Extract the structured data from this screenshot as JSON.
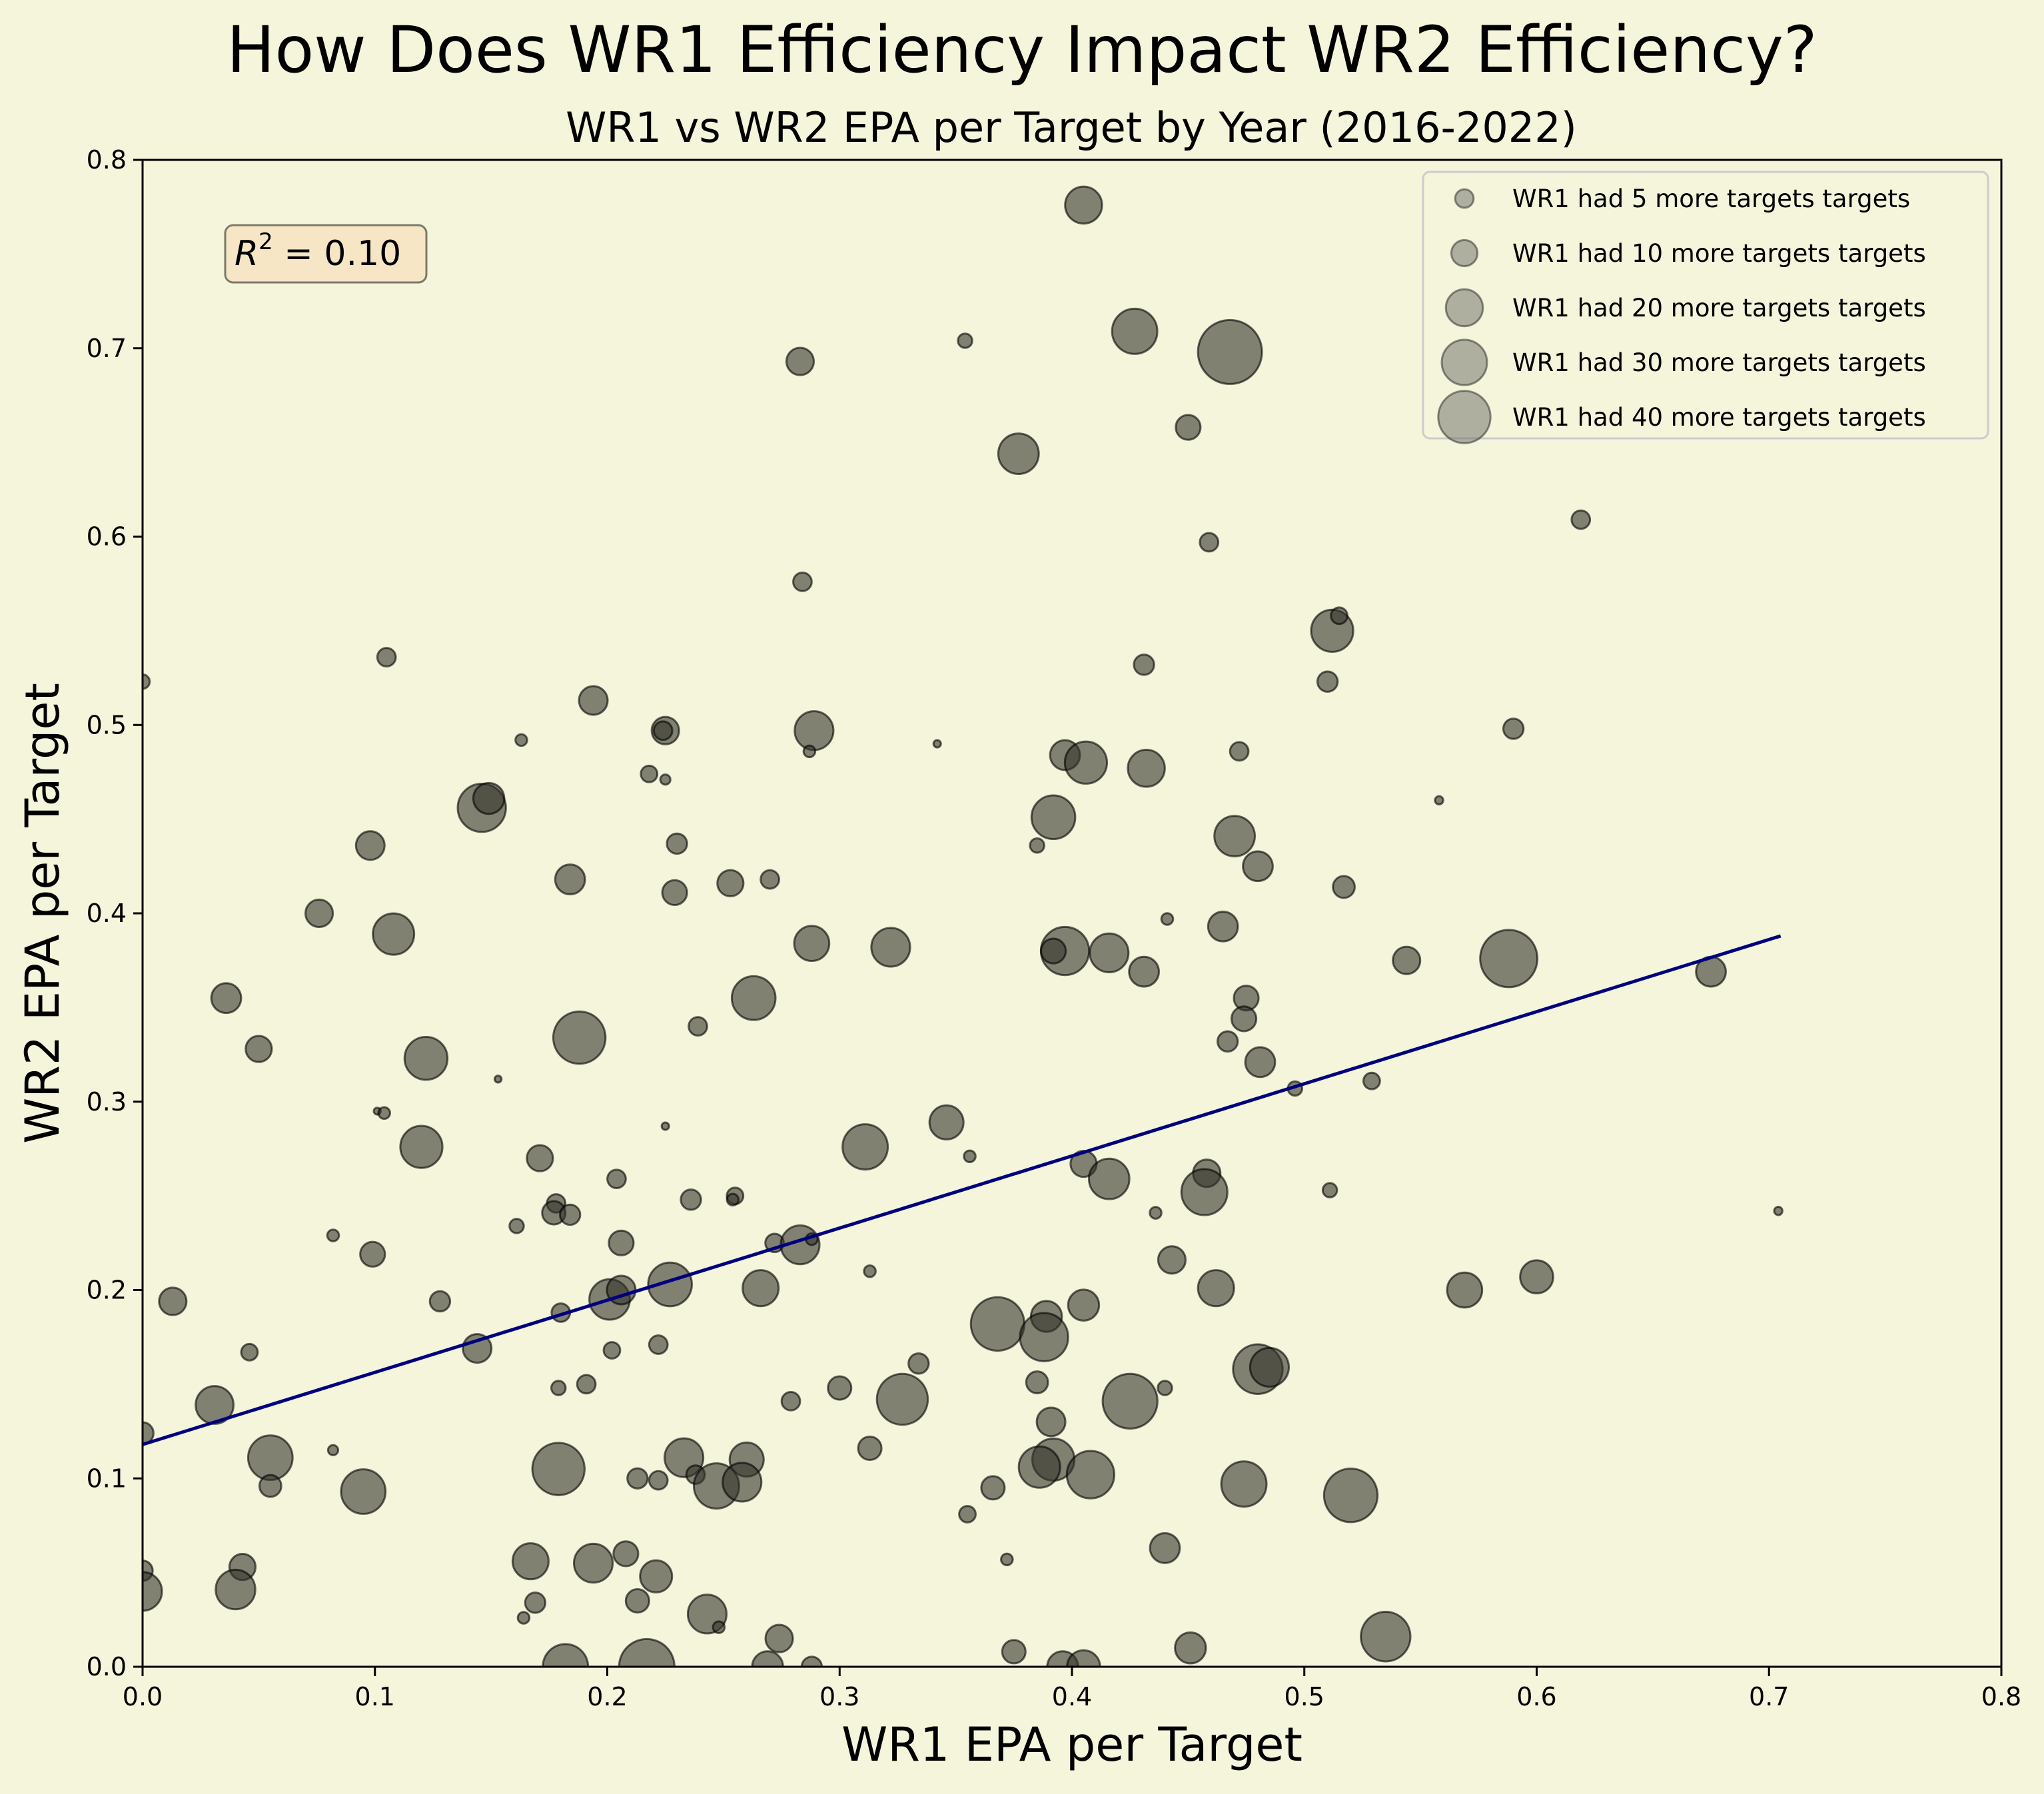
{
  "chart_data": {
    "type": "scatter",
    "title": "How Does WR1 Efficiency Impact WR2 Efficiency?",
    "subtitle": "WR1 vs WR2 EPA per Target by Year (2016-2022)",
    "xlabel": "WR1 EPA per Target",
    "ylabel": "WR2 EPA per Target",
    "xlim": [
      0.0,
      0.8
    ],
    "ylim": [
      0.0,
      0.8
    ],
    "xticks": [
      "0.0",
      "0.1",
      "0.2",
      "0.3",
      "0.4",
      "0.5",
      "0.6",
      "0.7",
      "0.8"
    ],
    "yticks": [
      "0.0",
      "0.1",
      "0.2",
      "0.3",
      "0.4",
      "0.5",
      "0.6",
      "0.7",
      "0.8"
    ],
    "grid": false,
    "annotation": "R² = 0.10",
    "annotation_parts": {
      "base": "R",
      "exp": "2",
      "rest": " = 0.10"
    },
    "trendline": {
      "x": [
        0.0,
        0.705
      ],
      "y": [
        0.118,
        0.388
      ],
      "color": "#00007f"
    },
    "legend": {
      "placement": "top-right",
      "entries": [
        {
          "label": "WR1 had 5 more targets targets",
          "size": 5
        },
        {
          "label": "WR1 had 10 more targets targets",
          "size": 10
        },
        {
          "label": "WR1 had 20 more targets targets",
          "size": 20
        },
        {
          "label": "WR1 had 30 more targets targets",
          "size": 30
        },
        {
          "label": "WR1 had 40 more targets targets",
          "size": 40
        }
      ]
    },
    "colors": {
      "background": "#f5f5dc",
      "marker": "#33332b",
      "trendline": "#00007f",
      "annotation_box": "#f7e6c6"
    },
    "points": [
      {
        "x": 0.405,
        "y": 0.776,
        "s": 20
      },
      {
        "x": 0.427,
        "y": 0.709,
        "s": 30
      },
      {
        "x": 0.468,
        "y": 0.698,
        "s": 60
      },
      {
        "x": 0.283,
        "y": 0.693,
        "s": 11
      },
      {
        "x": 0.354,
        "y": 0.704,
        "s": 3
      },
      {
        "x": 0.377,
        "y": 0.644,
        "s": 24
      },
      {
        "x": 0.45,
        "y": 0.658,
        "s": 9
      },
      {
        "x": 0.619,
        "y": 0.609,
        "s": 5
      },
      {
        "x": 0.459,
        "y": 0.597,
        "s": 5
      },
      {
        "x": 0.284,
        "y": 0.576,
        "s": 5
      },
      {
        "x": 0.512,
        "y": 0.55,
        "s": 26
      },
      {
        "x": 0.515,
        "y": 0.558,
        "s": 4
      },
      {
        "x": 0.51,
        "y": 0.523,
        "s": 6
      },
      {
        "x": 0.431,
        "y": 0.532,
        "s": 6
      },
      {
        "x": 0.0,
        "y": 0.523,
        "s": 3
      },
      {
        "x": 0.105,
        "y": 0.536,
        "s": 5
      },
      {
        "x": 0.194,
        "y": 0.513,
        "s": 12
      },
      {
        "x": 0.225,
        "y": 0.497,
        "s": 11
      },
      {
        "x": 0.224,
        "y": 0.497,
        "s": 5
      },
      {
        "x": 0.289,
        "y": 0.497,
        "s": 22
      },
      {
        "x": 0.287,
        "y": 0.486,
        "s": 2
      },
      {
        "x": 0.163,
        "y": 0.492,
        "s": 2
      },
      {
        "x": 0.342,
        "y": 0.49,
        "s": 0.8
      },
      {
        "x": 0.59,
        "y": 0.498,
        "s": 6
      },
      {
        "x": 0.472,
        "y": 0.486,
        "s": 5
      },
      {
        "x": 0.397,
        "y": 0.484,
        "s": 13
      },
      {
        "x": 0.406,
        "y": 0.48,
        "s": 26
      },
      {
        "x": 0.432,
        "y": 0.477,
        "s": 20
      },
      {
        "x": 0.218,
        "y": 0.474,
        "s": 4
      },
      {
        "x": 0.225,
        "y": 0.471,
        "s": 1.5
      },
      {
        "x": 0.146,
        "y": 0.456,
        "s": 34
      },
      {
        "x": 0.149,
        "y": 0.461,
        "s": 14
      },
      {
        "x": 0.392,
        "y": 0.451,
        "s": 28
      },
      {
        "x": 0.558,
        "y": 0.46,
        "s": 1
      },
      {
        "x": 0.098,
        "y": 0.436,
        "s": 12
      },
      {
        "x": 0.23,
        "y": 0.437,
        "s": 6
      },
      {
        "x": 0.385,
        "y": 0.436,
        "s": 3
      },
      {
        "x": 0.47,
        "y": 0.441,
        "s": 24
      },
      {
        "x": 0.48,
        "y": 0.425,
        "s": 13
      },
      {
        "x": 0.184,
        "y": 0.418,
        "s": 13
      },
      {
        "x": 0.253,
        "y": 0.416,
        "s": 10
      },
      {
        "x": 0.27,
        "y": 0.418,
        "s": 5
      },
      {
        "x": 0.229,
        "y": 0.411,
        "s": 9
      },
      {
        "x": 0.517,
        "y": 0.414,
        "s": 7
      },
      {
        "x": 0.076,
        "y": 0.4,
        "s": 11
      },
      {
        "x": 0.108,
        "y": 0.389,
        "s": 25
      },
      {
        "x": 0.441,
        "y": 0.397,
        "s": 2
      },
      {
        "x": 0.465,
        "y": 0.393,
        "s": 13
      },
      {
        "x": 0.288,
        "y": 0.384,
        "s": 18
      },
      {
        "x": 0.322,
        "y": 0.382,
        "s": 22
      },
      {
        "x": 0.397,
        "y": 0.38,
        "s": 34
      },
      {
        "x": 0.392,
        "y": 0.38,
        "s": 9
      },
      {
        "x": 0.416,
        "y": 0.379,
        "s": 22
      },
      {
        "x": 0.431,
        "y": 0.369,
        "s": 13
      },
      {
        "x": 0.588,
        "y": 0.376,
        "s": 48
      },
      {
        "x": 0.544,
        "y": 0.375,
        "s": 11
      },
      {
        "x": 0.675,
        "y": 0.369,
        "s": 13
      },
      {
        "x": 0.036,
        "y": 0.355,
        "s": 13
      },
      {
        "x": 0.263,
        "y": 0.355,
        "s": 28
      },
      {
        "x": 0.475,
        "y": 0.355,
        "s": 9
      },
      {
        "x": 0.474,
        "y": 0.344,
        "s": 9
      },
      {
        "x": 0.239,
        "y": 0.34,
        "s": 5
      },
      {
        "x": 0.188,
        "y": 0.334,
        "s": 40
      },
      {
        "x": 0.05,
        "y": 0.328,
        "s": 10
      },
      {
        "x": 0.122,
        "y": 0.323,
        "s": 27
      },
      {
        "x": 0.467,
        "y": 0.332,
        "s": 6
      },
      {
        "x": 0.481,
        "y": 0.321,
        "s": 13
      },
      {
        "x": 0.153,
        "y": 0.312,
        "s": 0.7
      },
      {
        "x": 0.529,
        "y": 0.311,
        "s": 4
      },
      {
        "x": 0.101,
        "y": 0.295,
        "s": 0.7
      },
      {
        "x": 0.104,
        "y": 0.294,
        "s": 2
      },
      {
        "x": 0.496,
        "y": 0.307,
        "s": 3
      },
      {
        "x": 0.346,
        "y": 0.289,
        "s": 17
      },
      {
        "x": 0.225,
        "y": 0.287,
        "s": 0.8
      },
      {
        "x": 0.12,
        "y": 0.276,
        "s": 26
      },
      {
        "x": 0.311,
        "y": 0.276,
        "s": 30
      },
      {
        "x": 0.171,
        "y": 0.27,
        "s": 10
      },
      {
        "x": 0.356,
        "y": 0.271,
        "s": 2
      },
      {
        "x": 0.405,
        "y": 0.267,
        "s": 10
      },
      {
        "x": 0.458,
        "y": 0.262,
        "s": 11
      },
      {
        "x": 0.416,
        "y": 0.259,
        "s": 24
      },
      {
        "x": 0.457,
        "y": 0.252,
        "s": 31
      },
      {
        "x": 0.204,
        "y": 0.259,
        "s": 5
      },
      {
        "x": 0.511,
        "y": 0.253,
        "s": 3
      },
      {
        "x": 0.255,
        "y": 0.25,
        "s": 4
      },
      {
        "x": 0.254,
        "y": 0.248,
        "s": 2
      },
      {
        "x": 0.236,
        "y": 0.248,
        "s": 6
      },
      {
        "x": 0.178,
        "y": 0.246,
        "s": 5
      },
      {
        "x": 0.177,
        "y": 0.241,
        "s": 8
      },
      {
        "x": 0.184,
        "y": 0.24,
        "s": 6
      },
      {
        "x": 0.436,
        "y": 0.241,
        "s": 2
      },
      {
        "x": 0.704,
        "y": 0.242,
        "s": 1
      },
      {
        "x": 0.161,
        "y": 0.234,
        "s": 3
      },
      {
        "x": 0.082,
        "y": 0.229,
        "s": 2
      },
      {
        "x": 0.272,
        "y": 0.225,
        "s": 5
      },
      {
        "x": 0.283,
        "y": 0.224,
        "s": 22
      },
      {
        "x": 0.288,
        "y": 0.227,
        "s": 2
      },
      {
        "x": 0.206,
        "y": 0.225,
        "s": 9
      },
      {
        "x": 0.099,
        "y": 0.219,
        "s": 9
      },
      {
        "x": 0.443,
        "y": 0.216,
        "s": 11
      },
      {
        "x": 0.313,
        "y": 0.21,
        "s": 2
      },
      {
        "x": 0.6,
        "y": 0.207,
        "s": 16
      },
      {
        "x": 0.227,
        "y": 0.203,
        "s": 28
      },
      {
        "x": 0.266,
        "y": 0.201,
        "s": 19
      },
      {
        "x": 0.462,
        "y": 0.201,
        "s": 19
      },
      {
        "x": 0.569,
        "y": 0.2,
        "s": 18
      },
      {
        "x": 0.013,
        "y": 0.194,
        "s": 11
      },
      {
        "x": 0.128,
        "y": 0.194,
        "s": 6
      },
      {
        "x": 0.201,
        "y": 0.195,
        "s": 24
      },
      {
        "x": 0.206,
        "y": 0.2,
        "s": 12
      },
      {
        "x": 0.405,
        "y": 0.192,
        "s": 14
      },
      {
        "x": 0.389,
        "y": 0.186,
        "s": 14
      },
      {
        "x": 0.368,
        "y": 0.182,
        "s": 42
      },
      {
        "x": 0.388,
        "y": 0.175,
        "s": 34
      },
      {
        "x": 0.18,
        "y": 0.188,
        "s": 5
      },
      {
        "x": 0.144,
        "y": 0.169,
        "s": 12
      },
      {
        "x": 0.046,
        "y": 0.167,
        "s": 4
      },
      {
        "x": 0.202,
        "y": 0.168,
        "s": 4
      },
      {
        "x": 0.222,
        "y": 0.171,
        "s": 5
      },
      {
        "x": 0.334,
        "y": 0.161,
        "s": 6
      },
      {
        "x": 0.48,
        "y": 0.158,
        "s": 36
      },
      {
        "x": 0.485,
        "y": 0.159,
        "s": 22
      },
      {
        "x": 0.385,
        "y": 0.151,
        "s": 7
      },
      {
        "x": 0.3,
        "y": 0.148,
        "s": 8
      },
      {
        "x": 0.179,
        "y": 0.148,
        "s": 3
      },
      {
        "x": 0.191,
        "y": 0.15,
        "s": 5
      },
      {
        "x": 0.44,
        "y": 0.148,
        "s": 3
      },
      {
        "x": 0.031,
        "y": 0.139,
        "s": 21
      },
      {
        "x": 0.279,
        "y": 0.141,
        "s": 5
      },
      {
        "x": 0.327,
        "y": 0.142,
        "s": 38
      },
      {
        "x": 0.425,
        "y": 0.141,
        "s": 44
      },
      {
        "x": 0.391,
        "y": 0.13,
        "s": 12
      },
      {
        "x": 0.0,
        "y": 0.124,
        "s": 7
      },
      {
        "x": 0.313,
        "y": 0.116,
        "s": 8
      },
      {
        "x": 0.082,
        "y": 0.115,
        "s": 1.5
      },
      {
        "x": 0.055,
        "y": 0.111,
        "s": 29
      },
      {
        "x": 0.233,
        "y": 0.111,
        "s": 22
      },
      {
        "x": 0.26,
        "y": 0.11,
        "s": 17
      },
      {
        "x": 0.392,
        "y": 0.11,
        "s": 26
      },
      {
        "x": 0.386,
        "y": 0.106,
        "s": 25
      },
      {
        "x": 0.179,
        "y": 0.105,
        "s": 40
      },
      {
        "x": 0.213,
        "y": 0.1,
        "s": 6
      },
      {
        "x": 0.222,
        "y": 0.099,
        "s": 5
      },
      {
        "x": 0.238,
        "y": 0.102,
        "s": 5
      },
      {
        "x": 0.247,
        "y": 0.096,
        "s": 30
      },
      {
        "x": 0.258,
        "y": 0.098,
        "s": 22
      },
      {
        "x": 0.408,
        "y": 0.102,
        "s": 33
      },
      {
        "x": 0.474,
        "y": 0.097,
        "s": 30
      },
      {
        "x": 0.52,
        "y": 0.091,
        "s": 42
      },
      {
        "x": 0.055,
        "y": 0.096,
        "s": 7
      },
      {
        "x": 0.095,
        "y": 0.093,
        "s": 29
      },
      {
        "x": 0.366,
        "y": 0.095,
        "s": 8
      },
      {
        "x": 0.355,
        "y": 0.081,
        "s": 4
      },
      {
        "x": 0.44,
        "y": 0.063,
        "s": 13
      },
      {
        "x": 0.167,
        "y": 0.056,
        "s": 19
      },
      {
        "x": 0.194,
        "y": 0.055,
        "s": 22
      },
      {
        "x": 0.208,
        "y": 0.06,
        "s": 9
      },
      {
        "x": 0.221,
        "y": 0.048,
        "s": 15
      },
      {
        "x": 0.372,
        "y": 0.057,
        "s": 2
      },
      {
        "x": 0.043,
        "y": 0.053,
        "s": 10
      },
      {
        "x": 0.0,
        "y": 0.051,
        "s": 6
      },
      {
        "x": 0.0,
        "y": 0.04,
        "s": 22
      },
      {
        "x": 0.04,
        "y": 0.041,
        "s": 23
      },
      {
        "x": 0.169,
        "y": 0.034,
        "s": 6
      },
      {
        "x": 0.213,
        "y": 0.035,
        "s": 8
      },
      {
        "x": 0.243,
        "y": 0.028,
        "s": 22
      },
      {
        "x": 0.164,
        "y": 0.026,
        "s": 2
      },
      {
        "x": 0.248,
        "y": 0.021,
        "s": 2
      },
      {
        "x": 0.274,
        "y": 0.015,
        "s": 11
      },
      {
        "x": 0.535,
        "y": 0.016,
        "s": 36
      },
      {
        "x": 0.451,
        "y": 0.01,
        "s": 14
      },
      {
        "x": 0.375,
        "y": 0.008,
        "s": 8
      },
      {
        "x": 0.182,
        "y": 0.0,
        "s": 30
      },
      {
        "x": 0.217,
        "y": 0.0,
        "s": 45
      },
      {
        "x": 0.269,
        "y": 0.0,
        "s": 14
      },
      {
        "x": 0.288,
        "y": 0.0,
        "s": 6
      },
      {
        "x": 0.396,
        "y": 0.0,
        "s": 14
      },
      {
        "x": 0.405,
        "y": 0.0,
        "s": 16
      }
    ]
  }
}
